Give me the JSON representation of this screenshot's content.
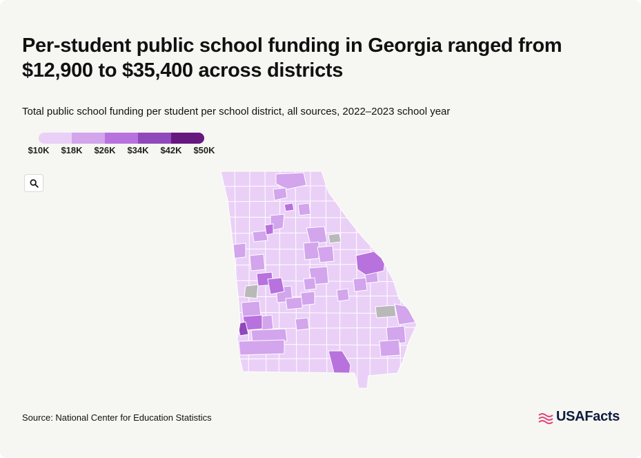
{
  "title": "Per-student public school funding in Georgia ranged from $12,900 to $35,400 across districts",
  "subtitle": "Total public school funding per student per school district, all sources, 2022–2023 school year",
  "legend": {
    "labels": [
      "$10K",
      "$18K",
      "$26K",
      "$34K",
      "$42K",
      "$50K"
    ],
    "colors": [
      "#ead0f7",
      "#d2a5ec",
      "#b872de",
      "#9049bb",
      "#66187f"
    ]
  },
  "map_colors": {
    "base": "#ead0f7",
    "no_data": "#b9b9b9",
    "border": "#ffffff"
  },
  "zoom_icon": "search-icon",
  "source": "Source: National Center for Education Statistics",
  "brand": {
    "name": "USAFacts",
    "accent": "#e0457b"
  }
}
